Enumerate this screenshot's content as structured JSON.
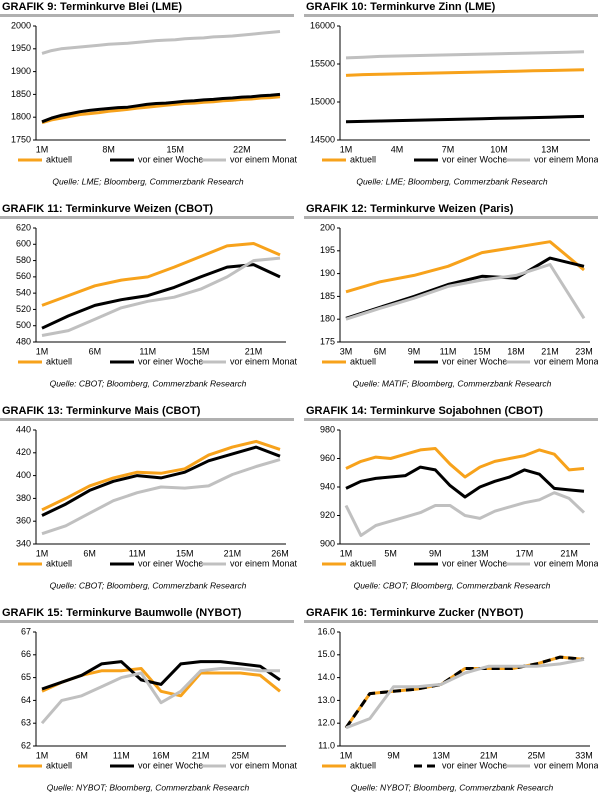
{
  "chart_data": [
    {
      "type": "line",
      "title": "GRAFIK 9: Terminkurve Blei (LME)",
      "source": "Quelle: LME; Bloomberg, Commerzbank Research",
      "categories": [
        "1M",
        null,
        null,
        null,
        null,
        null,
        null,
        "8M",
        null,
        null,
        null,
        null,
        null,
        null,
        "15M",
        null,
        null,
        null,
        null,
        null,
        null,
        "22M",
        null,
        null,
        null,
        null
      ],
      "ylim": [
        1750,
        2000
      ],
      "yticks": [
        1750,
        1800,
        1850,
        1900,
        1950,
        2000
      ],
      "series": [
        {
          "name": "aktuell",
          "color": "#f7a21b",
          "values": [
            1788,
            1794,
            1798,
            1802,
            1806,
            1808,
            1810,
            1813,
            1815,
            1817,
            1820,
            1822,
            1824,
            1826,
            1828,
            1830,
            1831,
            1833,
            1834,
            1836,
            1837,
            1839,
            1840,
            1842,
            1843,
            1845
          ]
        },
        {
          "name": "vor einer Woche",
          "color": "#000000",
          "values": [
            1790,
            1798,
            1804,
            1808,
            1812,
            1815,
            1817,
            1819,
            1821,
            1822,
            1825,
            1828,
            1830,
            1831,
            1833,
            1835,
            1836,
            1838,
            1839,
            1841,
            1842,
            1844,
            1845,
            1847,
            1848,
            1850
          ]
        },
        {
          "name": "vor einem Monat",
          "color": "#c0c0c0",
          "values": [
            1940,
            1946,
            1950,
            1952,
            1954,
            1956,
            1958,
            1960,
            1961,
            1962,
            1964,
            1966,
            1968,
            1969,
            1970,
            1972,
            1973,
            1974,
            1976,
            1977,
            1978,
            1980,
            1982,
            1984,
            1986,
            1988
          ]
        }
      ]
    },
    {
      "type": "line",
      "title": "GRAFIK 10: Terminkurve Zinn (LME)",
      "source": "Quelle: LME; Bloomberg, Commerzbank Research",
      "categories": [
        "1M",
        null,
        null,
        "4M",
        null,
        null,
        "7M",
        null,
        null,
        "10M",
        null,
        null,
        "13M",
        null,
        null
      ],
      "ylim": [
        14500,
        16000
      ],
      "yticks": [
        14500,
        15000,
        15500,
        16000
      ],
      "series": [
        {
          "name": "aktuell",
          "color": "#f7a21b",
          "values": [
            15350,
            15360,
            15365,
            15370,
            15375,
            15380,
            15385,
            15390,
            15395,
            15400,
            15405,
            15410,
            15415,
            15420,
            15425
          ]
        },
        {
          "name": "vor einer Woche",
          "color": "#000000",
          "values": [
            14740,
            14745,
            14750,
            14755,
            14760,
            14765,
            14770,
            14775,
            14780,
            14785,
            14790,
            14795,
            14800,
            14805,
            14810
          ]
        },
        {
          "name": "vor einem Monat",
          "color": "#c0c0c0",
          "values": [
            15580,
            15590,
            15600,
            15605,
            15610,
            15615,
            15620,
            15625,
            15630,
            15635,
            15640,
            15645,
            15650,
            15655,
            15660
          ]
        }
      ]
    },
    {
      "type": "line",
      "title": "GRAFIK 11: Terminkurve Weizen (CBOT)",
      "source": "Quelle: CBOT; Bloomberg, Commerzbank Research",
      "categories": [
        "1M",
        null,
        "6M",
        null,
        "11M",
        null,
        "15M",
        null,
        "21M",
        null
      ],
      "ylim": [
        480,
        620
      ],
      "yticks": [
        480,
        500,
        520,
        540,
        560,
        580,
        600,
        620
      ],
      "series": [
        {
          "name": "aktuell",
          "color": "#f7a21b",
          "values": [
            525,
            537,
            549,
            556,
            560,
            572,
            585,
            598,
            601,
            587
          ]
        },
        {
          "name": "vor einer Woche",
          "color": "#000000",
          "values": [
            497,
            512,
            525,
            532,
            537,
            547,
            560,
            572,
            575,
            560
          ]
        },
        {
          "name": "vor einem Monat",
          "color": "#c0c0c0",
          "values": [
            488,
            494,
            508,
            522,
            530,
            535,
            545,
            560,
            580,
            583
          ]
        }
      ]
    },
    {
      "type": "line",
      "title": "GRAFIK 12: Terminkurve Weizen (Paris)",
      "source": "Quelle: MATIF; Bloomberg, Commerzbank Research",
      "categories": [
        "3M",
        "6M",
        "9M",
        "11M",
        "15M",
        "18M",
        "21M",
        "23M"
      ],
      "ylim": [
        175,
        200
      ],
      "yticks": [
        175,
        180,
        185,
        190,
        195,
        200
      ],
      "series": [
        {
          "name": "aktuell",
          "color": "#f7a21b",
          "values": [
            186,
            188.2,
            189.6,
            191.6,
            194.6,
            195.8,
            197,
            190.8
          ]
        },
        {
          "name": "vor einer Woche",
          "color": "#000000",
          "values": [
            180.2,
            182.6,
            185,
            187.6,
            189.4,
            189,
            193.4,
            191.6
          ]
        },
        {
          "name": "vor einem Monat",
          "color": "#c0c0c0",
          "values": [
            180,
            182.4,
            184.6,
            187.2,
            188.6,
            189.6,
            192,
            180.2
          ]
        }
      ]
    },
    {
      "type": "line",
      "title": "GRAFIK 13: Terminkurve Mais (CBOT)",
      "source": "Quelle: CBOT; Bloomberg, Commerzbank Research",
      "categories": [
        "1M",
        null,
        "6M",
        null,
        "11M",
        null,
        "15M",
        null,
        "21M",
        null,
        "26M"
      ],
      "ylim": [
        340,
        440
      ],
      "yticks": [
        340,
        360,
        380,
        400,
        420,
        440
      ],
      "series": [
        {
          "name": "aktuell",
          "color": "#f7a21b",
          "values": [
            370,
            380,
            391,
            398,
            403,
            402,
            406,
            418,
            425,
            430,
            423
          ]
        },
        {
          "name": "vor einer Woche",
          "color": "#000000",
          "values": [
            365,
            375,
            387,
            395,
            400,
            398,
            403,
            413,
            419,
            425,
            417
          ]
        },
        {
          "name": "vor einem Monat",
          "color": "#c0c0c0",
          "values": [
            349,
            356,
            367,
            378,
            385,
            390,
            389,
            391,
            401,
            408,
            414
          ]
        }
      ]
    },
    {
      "type": "line",
      "title": "GRAFIK 14: Terminkurve Sojabohnen (CBOT)",
      "source": "Quelle: CBOT; Bloomberg, Commerzbank Research",
      "categories": [
        "1M",
        null,
        null,
        "5M",
        null,
        null,
        "9M",
        null,
        null,
        "13M",
        null,
        null,
        "17M",
        null,
        null,
        "21M",
        null
      ],
      "ylim": [
        900,
        980
      ],
      "yticks": [
        900,
        920,
        940,
        960,
        980
      ],
      "series": [
        {
          "name": "aktuell",
          "color": "#f7a21b",
          "values": [
            953,
            958,
            961,
            960,
            963,
            966,
            967,
            956,
            947,
            954,
            958,
            960,
            962,
            966,
            963,
            952,
            953
          ]
        },
        {
          "name": "vor einer Woche",
          "color": "#000000",
          "values": [
            939,
            944,
            946,
            947,
            948,
            954,
            952,
            941,
            933,
            940,
            944,
            947,
            952,
            949,
            939,
            938,
            937
          ]
        },
        {
          "name": "vor einem Monat",
          "color": "#c0c0c0",
          "values": [
            927,
            906,
            913,
            916,
            919,
            922,
            927,
            927,
            920,
            918,
            923,
            926,
            929,
            931,
            936,
            932,
            922
          ]
        }
      ]
    },
    {
      "type": "line",
      "title": "GRAFIK 15: Terminkurve Baumwolle (NYBOT)",
      "source": "Quelle: NYBOT; Bloomberg, Commerzbank Research",
      "categories": [
        "1M",
        null,
        "6M",
        null,
        "11M",
        null,
        "16M",
        null,
        "21M",
        null,
        "25M",
        null,
        null
      ],
      "ylim": [
        62,
        67
      ],
      "yticks": [
        62,
        63,
        64,
        65,
        66,
        67
      ],
      "series": [
        {
          "name": "aktuell",
          "color": "#f7a21b",
          "values": [
            64.4,
            64.8,
            65.1,
            65.3,
            65.3,
            65.4,
            64.4,
            64.2,
            65.2,
            65.2,
            65.2,
            65.1,
            64.4
          ]
        },
        {
          "name": "vor einer Woche",
          "color": "#000000",
          "values": [
            64.5,
            64.8,
            65.1,
            65.6,
            65.7,
            64.9,
            64.7,
            65.6,
            65.7,
            65.7,
            65.6,
            65.5,
            64.9
          ]
        },
        {
          "name": "vor einem Monat",
          "color": "#c0c0c0",
          "values": [
            63.0,
            64.0,
            64.2,
            64.6,
            65.0,
            65.2,
            63.9,
            64.4,
            65.3,
            65.4,
            65.4,
            65.3,
            65.3
          ]
        }
      ]
    },
    {
      "type": "line",
      "title": "GRAFIK 16: Terminkurve Zucker (NYBOT)",
      "source": "Quelle: NYBOT; Bloomberg, Commerzbank Research",
      "categories": [
        "1M",
        null,
        "9M",
        null,
        "13M",
        null,
        "21M",
        null,
        "25M",
        null,
        "33M"
      ],
      "ylim": [
        11,
        16
      ],
      "yticks": [
        {
          "value": 11,
          "label": "11.0"
        },
        {
          "value": 12,
          "label": "12.0"
        },
        {
          "value": 13,
          "label": "13.0"
        },
        {
          "value": 14,
          "label": "14.0"
        },
        {
          "value": 15,
          "label": "15.0"
        },
        {
          "value": 16,
          "label": "16.0"
        }
      ],
      "series": [
        {
          "name": "aktuell",
          "color": "#f7a21b",
          "values": [
            11.8,
            13.3,
            13.4,
            13.5,
            13.7,
            14.4,
            14.4,
            14.4,
            14.6,
            14.9,
            14.8
          ]
        },
        {
          "name": "vor einer Woche",
          "color": "#000000",
          "dashed": true,
          "values": [
            11.8,
            13.3,
            13.4,
            13.5,
            13.7,
            14.4,
            14.4,
            14.4,
            14.6,
            14.9,
            14.8
          ]
        },
        {
          "name": "vor einem Monat",
          "color": "#c0c0c0",
          "values": [
            11.8,
            12.2,
            13.6,
            13.6,
            13.7,
            14.2,
            14.5,
            14.5,
            14.5,
            14.6,
            14.8
          ]
        }
      ]
    }
  ]
}
